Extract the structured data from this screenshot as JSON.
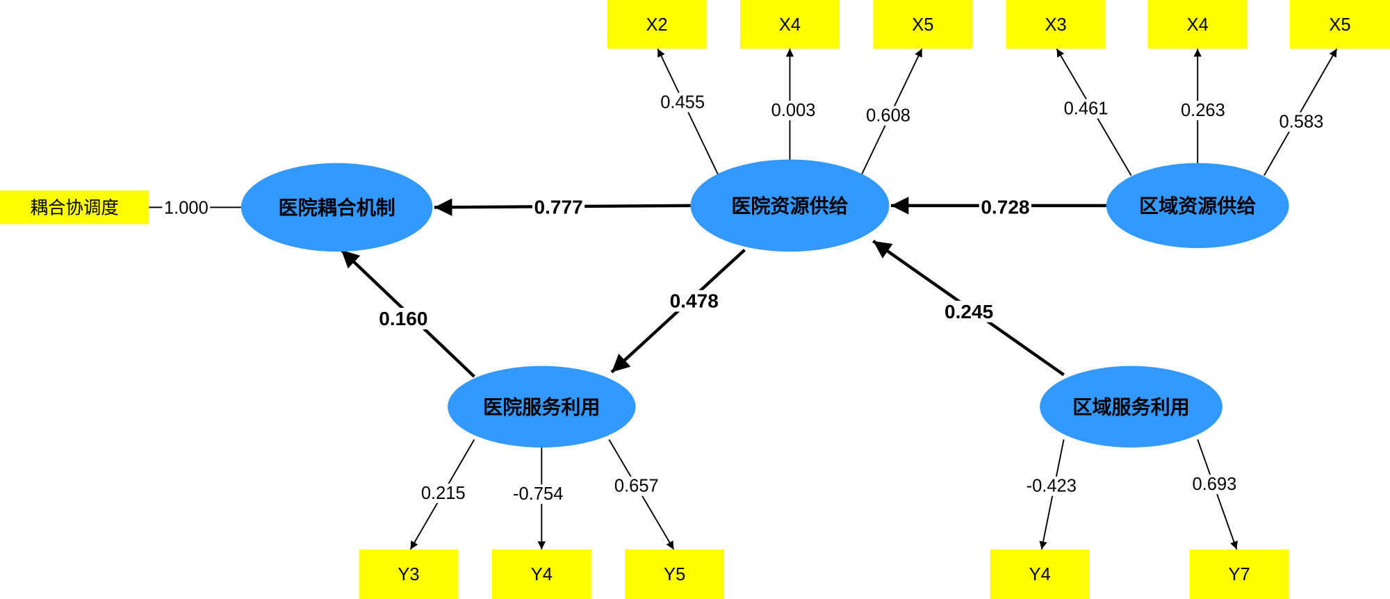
{
  "indicators": [
    {
      "id": "ind_coupling",
      "label": "耦合协调度"
    },
    {
      "id": "x2",
      "label": "X2"
    },
    {
      "id": "x4a",
      "label": "X4"
    },
    {
      "id": "x5a",
      "label": "X5"
    },
    {
      "id": "x3",
      "label": "X3"
    },
    {
      "id": "x4b",
      "label": "X4"
    },
    {
      "id": "x5b",
      "label": "X5"
    },
    {
      "id": "y3",
      "label": "Y3"
    },
    {
      "id": "y4a",
      "label": "Y4"
    },
    {
      "id": "y5",
      "label": "Y5"
    },
    {
      "id": "y4b",
      "label": "Y4"
    },
    {
      "id": "y7",
      "label": "Y7"
    }
  ],
  "latents": [
    {
      "id": "hosp_coupling",
      "label": "医院耦合机制"
    },
    {
      "id": "hosp_resource",
      "label": "医院资源供给"
    },
    {
      "id": "region_resource",
      "label": "区域资源供给"
    },
    {
      "id": "hosp_service",
      "label": "医院服务利用"
    },
    {
      "id": "region_service",
      "label": "区域服务利用"
    }
  ],
  "structural_paths": [
    {
      "from": "hosp_resource",
      "to": "hosp_coupling",
      "value": "0.777"
    },
    {
      "from": "region_resource",
      "to": "hosp_resource",
      "value": "0.728"
    },
    {
      "from": "hosp_service",
      "to": "hosp_coupling",
      "value": "0.160"
    },
    {
      "from": "hosp_resource",
      "to": "hosp_service",
      "value": "0.478"
    },
    {
      "from": "region_service",
      "to": "hosp_resource",
      "value": "0.245"
    }
  ],
  "measurement_paths": [
    {
      "from": "hosp_coupling",
      "to": "ind_coupling",
      "value": "1.000"
    },
    {
      "from": "hosp_resource",
      "to": "x2",
      "value": "0.455"
    },
    {
      "from": "hosp_resource",
      "to": "x4a",
      "value": "0.003"
    },
    {
      "from": "hosp_resource",
      "to": "x5a",
      "value": "0.608"
    },
    {
      "from": "region_resource",
      "to": "x3",
      "value": "0.461"
    },
    {
      "from": "region_resource",
      "to": "x4b",
      "value": "0.263"
    },
    {
      "from": "region_resource",
      "to": "x5b",
      "value": "0.583"
    },
    {
      "from": "hosp_service",
      "to": "y3",
      "value": "0.215"
    },
    {
      "from": "hosp_service",
      "to": "y4a",
      "value": "-0.754"
    },
    {
      "from": "hosp_service",
      "to": "y5",
      "value": "0.657"
    },
    {
      "from": "region_service",
      "to": "y4b",
      "value": "-0.423"
    },
    {
      "from": "region_service",
      "to": "y7",
      "value": "0.693"
    }
  ],
  "colors": {
    "indicator": "#ffff00",
    "latent": "#3399ff",
    "line": "#000000"
  }
}
